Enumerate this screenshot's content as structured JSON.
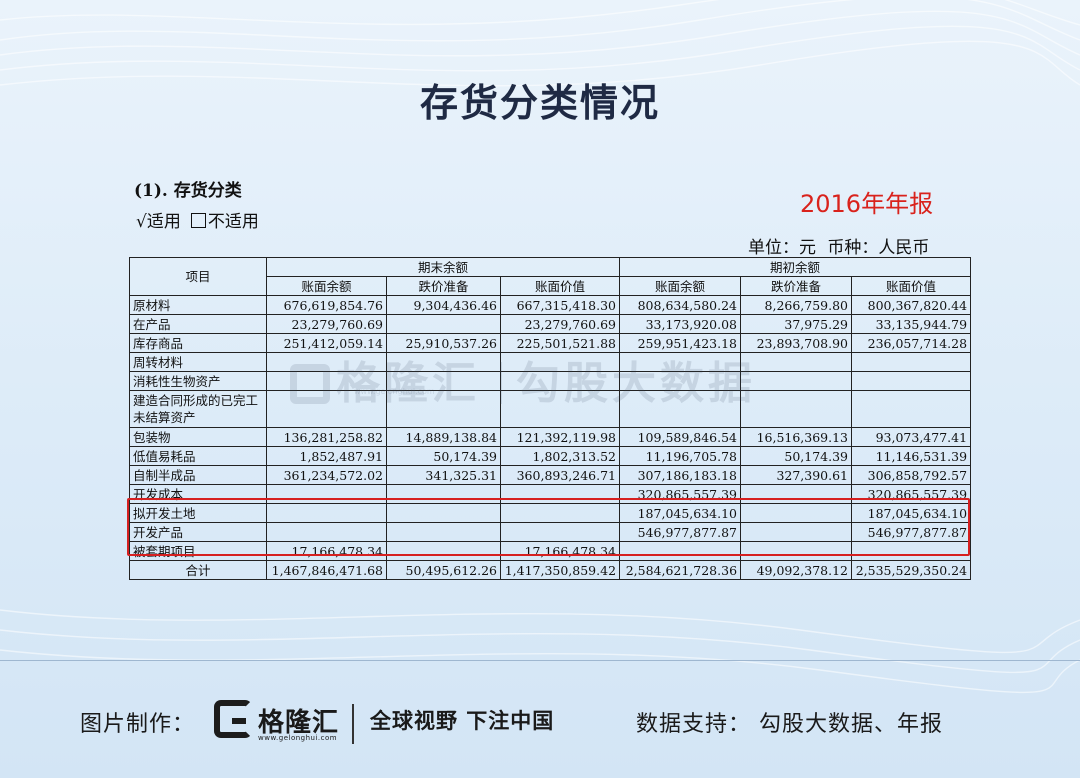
{
  "title": "存货分类情况",
  "section": {
    "heading": "(1).   存货分类",
    "applicable_checked": "√适用",
    "not_applicable": "不适用"
  },
  "report_label": "2016年年报",
  "unit_line": "单位：元   币种：人民币",
  "table": {
    "item_header": "项目",
    "group_end": "期末余额",
    "group_begin": "期初余额",
    "sub_headers": [
      "账面余额",
      "跌价准备",
      "账面价值",
      "账面余额",
      "跌价准备",
      "账面价值"
    ],
    "rows": [
      {
        "label": "原材料",
        "v": [
          "676,619,854.76",
          "9,304,436.46",
          "667,315,418.30",
          "808,634,580.24",
          "8,266,759.80",
          "800,367,820.44"
        ]
      },
      {
        "label": "在产品",
        "v": [
          "23,279,760.69",
          "",
          "23,279,760.69",
          "33,173,920.08",
          "37,975.29",
          "33,135,944.79"
        ]
      },
      {
        "label": "库存商品",
        "v": [
          "251,412,059.14",
          "25,910,537.26",
          "225,501,521.88",
          "259,951,423.18",
          "23,893,708.90",
          "236,057,714.28"
        ]
      },
      {
        "label": "周转材料",
        "v": [
          "",
          "",
          "",
          "",
          "",
          ""
        ]
      },
      {
        "label": "消耗性生物资产",
        "v": [
          "",
          "",
          "",
          "",
          "",
          ""
        ]
      },
      {
        "label": "建造合同形成的已完工未结算资产",
        "v": [
          "",
          "",
          "",
          "",
          "",
          ""
        ]
      },
      {
        "label": "包装物",
        "v": [
          "136,281,258.82",
          "14,889,138.84",
          "121,392,119.98",
          "109,589,846.54",
          "16,516,369.13",
          "93,073,477.41"
        ]
      },
      {
        "label": "低值易耗品",
        "v": [
          "1,852,487.91",
          "50,174.39",
          "1,802,313.52",
          "11,196,705.78",
          "50,174.39",
          "11,146,531.39"
        ]
      },
      {
        "label": "自制半成品",
        "v": [
          "361,234,572.02",
          "341,325.31",
          "360,893,246.71",
          "307,186,183.18",
          "327,390.61",
          "306,858,792.57"
        ]
      },
      {
        "label": "开发成本",
        "v": [
          "",
          "",
          "",
          "320,865,557.39",
          "",
          "320,865,557.39"
        ]
      },
      {
        "label": "拟开发土地",
        "v": [
          "",
          "",
          "",
          "187,045,634.10",
          "",
          "187,045,634.10"
        ]
      },
      {
        "label": "开发产品",
        "v": [
          "",
          "",
          "",
          "546,977,877.87",
          "",
          "546,977,877.87"
        ]
      },
      {
        "label": "被套期项目",
        "v": [
          "17,166,478.34",
          "",
          "17,166,478.34",
          "",
          "",
          ""
        ]
      }
    ],
    "total": {
      "label": "合计",
      "v": [
        "1,467,846,471.68",
        "50,495,612.26",
        "1,417,350,859.42",
        "2,584,621,728.36",
        "49,092,378.12",
        "2,535,529,350.24"
      ]
    }
  },
  "watermark": {
    "brand": "格隆汇",
    "url": "www.gelonghui.com",
    "text": "勾股大数据"
  },
  "footer": {
    "made_by": "图片制作：",
    "brand": "格隆汇",
    "brand_url": "www.gelonghui.com",
    "slogan": "全球视野 下注中国",
    "source": "数据支持：  勾股大数据、年报"
  },
  "colors": {
    "accent_red": "#d62020",
    "report_label": "#d9221c",
    "background": "#dcebf8"
  }
}
